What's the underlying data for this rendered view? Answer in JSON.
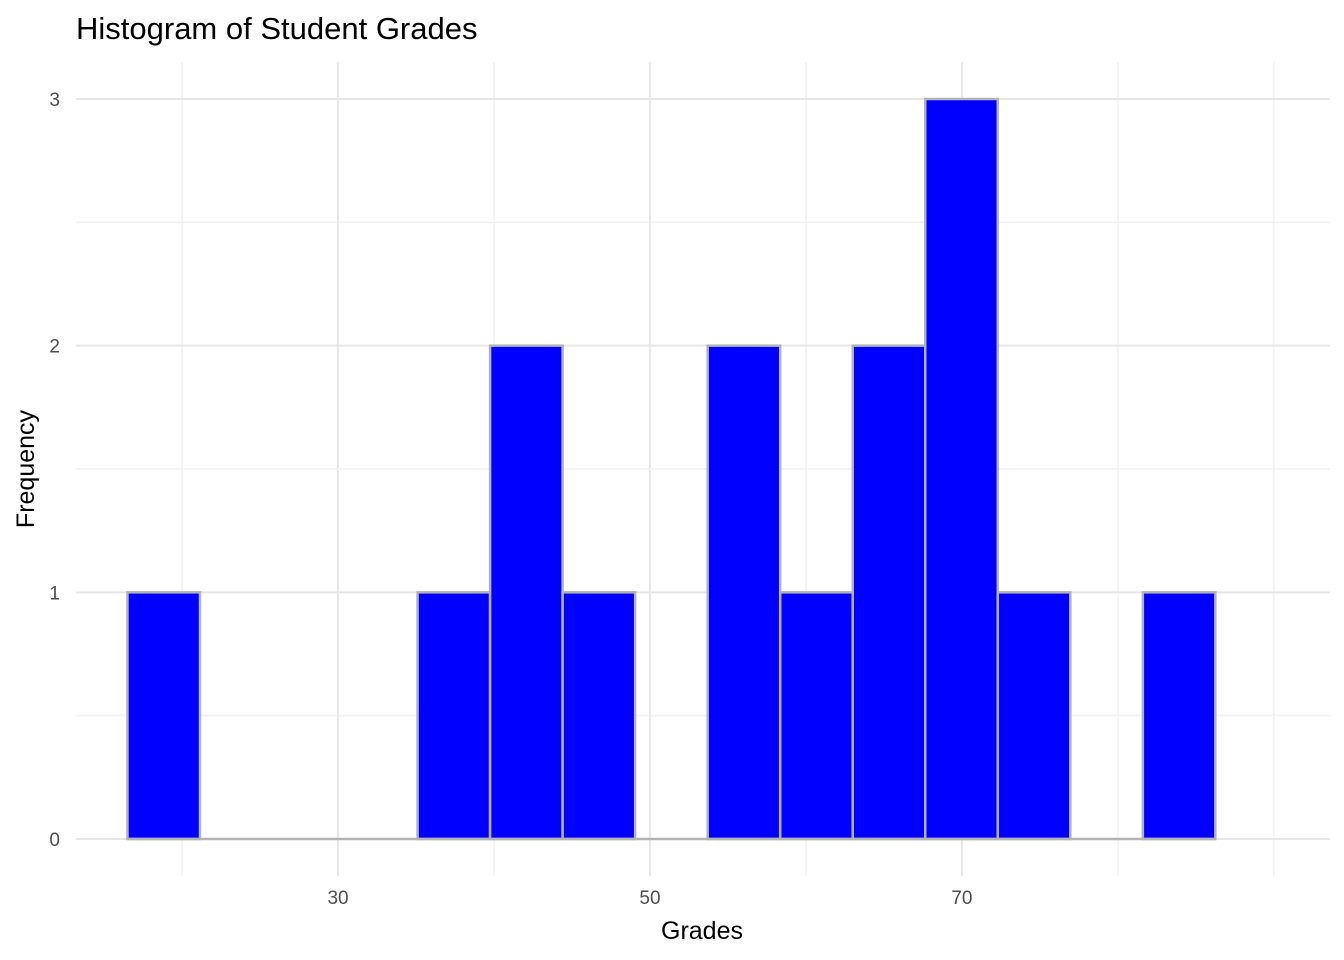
{
  "chart_data": {
    "type": "bar",
    "title": "Histogram of Student Grades",
    "xlabel": "Grades",
    "ylabel": "Frequency",
    "bin_width": 4.65,
    "x_first_bin_start": 16.5,
    "xlim": [
      13.2,
      93.6
    ],
    "ylim": [
      -0.15,
      3.15
    ],
    "x_ticks": [
      30,
      50,
      70
    ],
    "y_ticks": [
      0,
      1,
      2,
      3
    ],
    "values": [
      1,
      0,
      0,
      0,
      1,
      2,
      1,
      0,
      2,
      1,
      2,
      3,
      1,
      0,
      1
    ],
    "fill_color": "#0000ff",
    "border_color": "#b3b3b3",
    "grid": true,
    "legend": "none"
  }
}
